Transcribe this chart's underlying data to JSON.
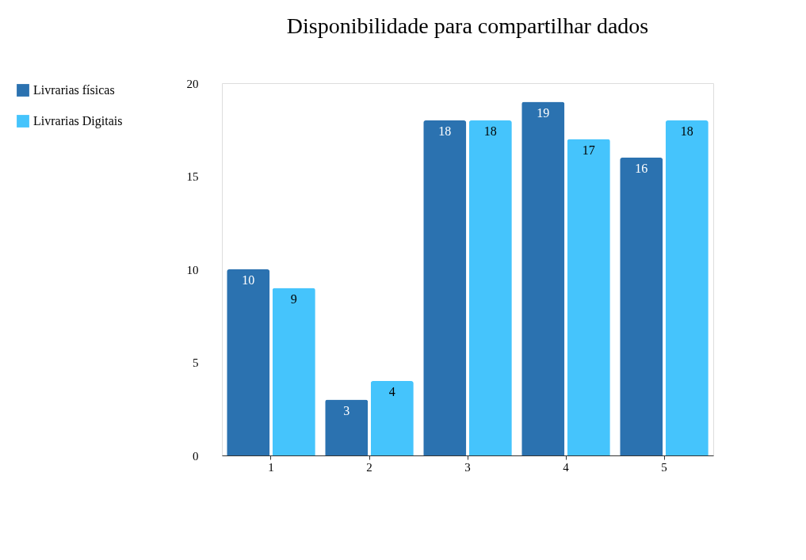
{
  "chart_data": {
    "type": "bar",
    "title": "Disponibilidade para compartilhar dados",
    "categories": [
      "1",
      "2",
      "3",
      "4",
      "5"
    ],
    "series": [
      {
        "name": "Livrarias físicas",
        "color": "#2b72b0",
        "values": [
          10,
          3,
          18,
          19,
          16
        ]
      },
      {
        "name": "Livrarias Digitais",
        "color": "#45c4fc",
        "values": [
          9,
          4,
          18,
          17,
          18
        ]
      }
    ],
    "ylim": [
      0,
      20
    ],
    "yticks": [
      0,
      5,
      10,
      15,
      20
    ],
    "grid": false,
    "legend": "top left",
    "data_labels": true
  }
}
